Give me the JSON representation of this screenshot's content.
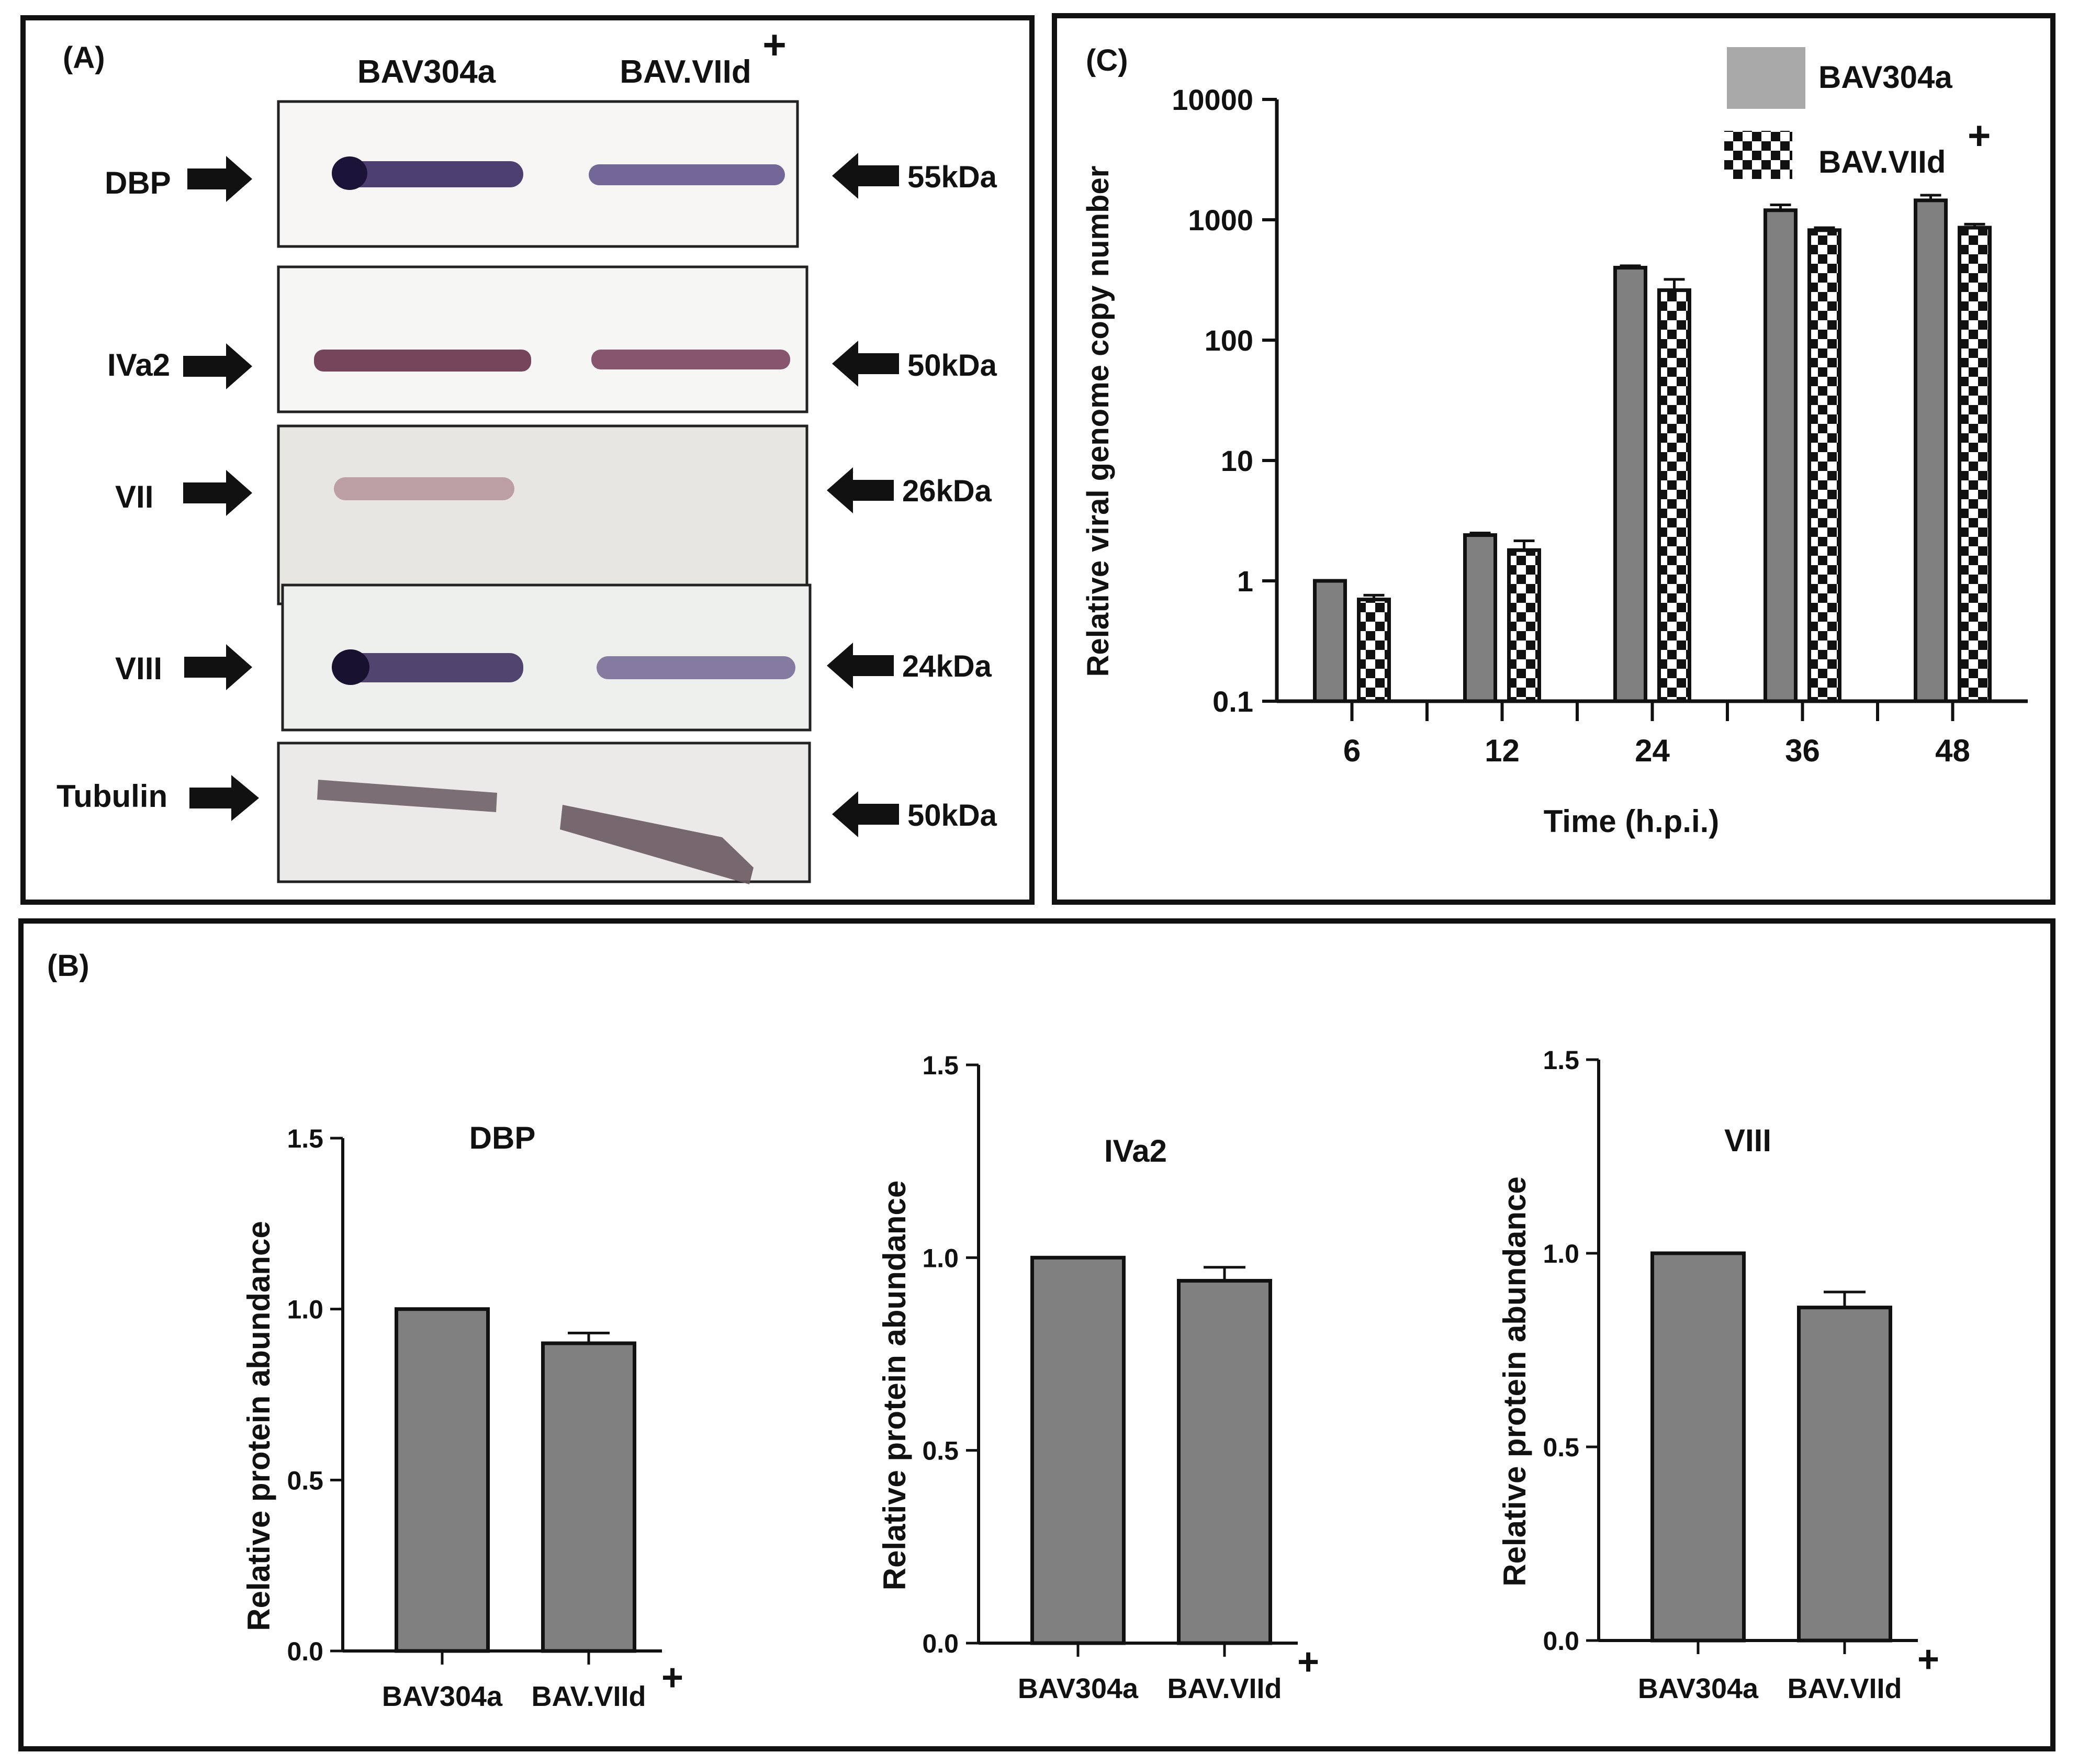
{
  "panel_a": {
    "label": "(A)",
    "lane_labels": {
      "lane1": "BAV304a",
      "lane2": "BAV.VIId",
      "lane2_sup": "+"
    },
    "blots": [
      {
        "name": "DBP",
        "size": "55kDa"
      },
      {
        "name": "IVa2",
        "size": "50kDa"
      },
      {
        "name": "VII",
        "size": "26kDa"
      },
      {
        "name": "VIII",
        "size": "24kDa"
      },
      {
        "name": "Tubulin",
        "size": "50kDa"
      }
    ]
  },
  "panel_b_label": "(B)",
  "panel_c_label": "(C)",
  "colors": {
    "bar": "#808080",
    "frame": "#111111",
    "checker_dark": "#111111"
  },
  "chart_data": [
    {
      "id": "C",
      "type": "bar",
      "title": "",
      "xlabel": "Time (h.p.i.)",
      "ylabel": "Relative viral genome copy number",
      "yscale": "log",
      "ylim": [
        0.1,
        10000
      ],
      "yticks": [
        "0.1",
        "1",
        "10",
        "100",
        "1000",
        "10000"
      ],
      "categories": [
        "6",
        "12",
        "24",
        "36",
        "48"
      ],
      "legend_position": "top-right",
      "series": [
        {
          "name": "BAV304a",
          "sup": "",
          "pattern": "solid",
          "values": [
            1,
            2.4,
            400,
            1200,
            1450
          ],
          "errors": [
            0,
            0.1,
            15,
            130,
            150
          ]
        },
        {
          "name": "BAV.VIId",
          "sup": "+",
          "pattern": "checker",
          "values": [
            0.7,
            1.8,
            260,
            820,
            860
          ],
          "errors": [
            0.06,
            0.35,
            60,
            40,
            60
          ]
        }
      ]
    },
    {
      "id": "B1",
      "type": "bar",
      "title": "DBP",
      "xlabel": "",
      "ylabel": "Relative protein abundance",
      "ylim": [
        0,
        1.5
      ],
      "yticks": [
        "0.0",
        "0.5",
        "1.0",
        "1.5"
      ],
      "categories": [
        "BAV304a",
        "BAV.VIId"
      ],
      "category_sups": [
        "",
        "+"
      ],
      "values": [
        1.0,
        0.9
      ],
      "errors": [
        0,
        0.03
      ]
    },
    {
      "id": "B2",
      "type": "bar",
      "title": "IVa2",
      "xlabel": "",
      "ylabel": "Relative protein abundance",
      "ylim": [
        0,
        1.5
      ],
      "yticks": [
        "0.0",
        "0.5",
        "1.0",
        "1.5"
      ],
      "categories": [
        "BAV304a",
        "BAV.VIId"
      ],
      "category_sups": [
        "",
        "+"
      ],
      "values": [
        1.0,
        0.94
      ],
      "errors": [
        0,
        0.035
      ]
    },
    {
      "id": "B3",
      "type": "bar",
      "title": "VIII",
      "xlabel": "",
      "ylabel": "Relative protein abundance",
      "ylim": [
        0,
        1.5
      ],
      "yticks": [
        "0.0",
        "0.5",
        "1.0",
        "1.5"
      ],
      "categories": [
        "BAV304a",
        "BAV.VIId"
      ],
      "category_sups": [
        "",
        "+"
      ],
      "values": [
        1.0,
        0.86
      ],
      "errors": [
        0,
        0.04
      ]
    }
  ]
}
